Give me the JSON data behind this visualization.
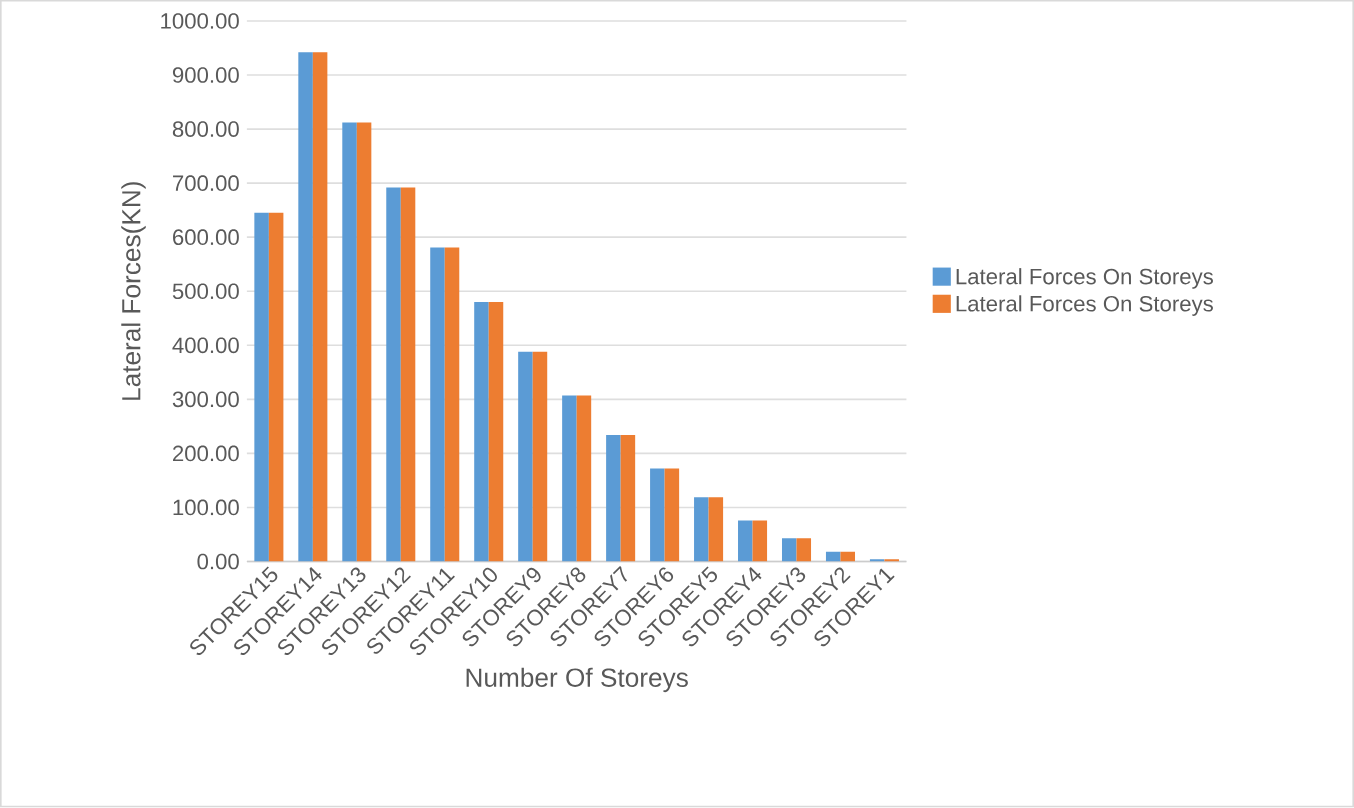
{
  "chart_data": {
    "type": "bar",
    "xlabel": "Number Of Storeys",
    "ylabel": "Lateral Forces(KN)",
    "categories": [
      "STOREY15",
      "STOREY14",
      "STOREY13",
      "STOREY12",
      "STOREY11",
      "STOREY10",
      "STOREY9",
      "STOREY8",
      "STOREY7",
      "STOREY6",
      "STOREY5",
      "STOREY4",
      "STOREY3",
      "STOREY2",
      "STOREY1"
    ],
    "series": [
      {
        "name": "Lateral Forces On Storeys",
        "color": "#5b9bd5",
        "values": [
          645,
          942,
          812,
          692,
          581,
          480,
          388,
          307,
          234,
          172,
          119,
          76,
          43,
          18,
          4
        ]
      },
      {
        "name": "Lateral Forces On Storeys",
        "color": "#ed7d31",
        "values": [
          645,
          942,
          812,
          692,
          581,
          480,
          388,
          307,
          234,
          172,
          119,
          76,
          43,
          18,
          4
        ]
      }
    ],
    "ylim": [
      0,
      1000
    ],
    "yticks": [
      {
        "value": 0,
        "label": "0.00"
      },
      {
        "value": 100,
        "label": "100.00"
      },
      {
        "value": 200,
        "label": "200.00"
      },
      {
        "value": 300,
        "label": "300.00"
      },
      {
        "value": 400,
        "label": "400.00"
      },
      {
        "value": 500,
        "label": "500.00"
      },
      {
        "value": 600,
        "label": "600.00"
      },
      {
        "value": 700,
        "label": "700.00"
      },
      {
        "value": 800,
        "label": "800.00"
      },
      {
        "value": 900,
        "label": "900.00"
      },
      {
        "value": 1000,
        "label": "1000.00"
      }
    ],
    "grid": "y",
    "legend": "right"
  }
}
